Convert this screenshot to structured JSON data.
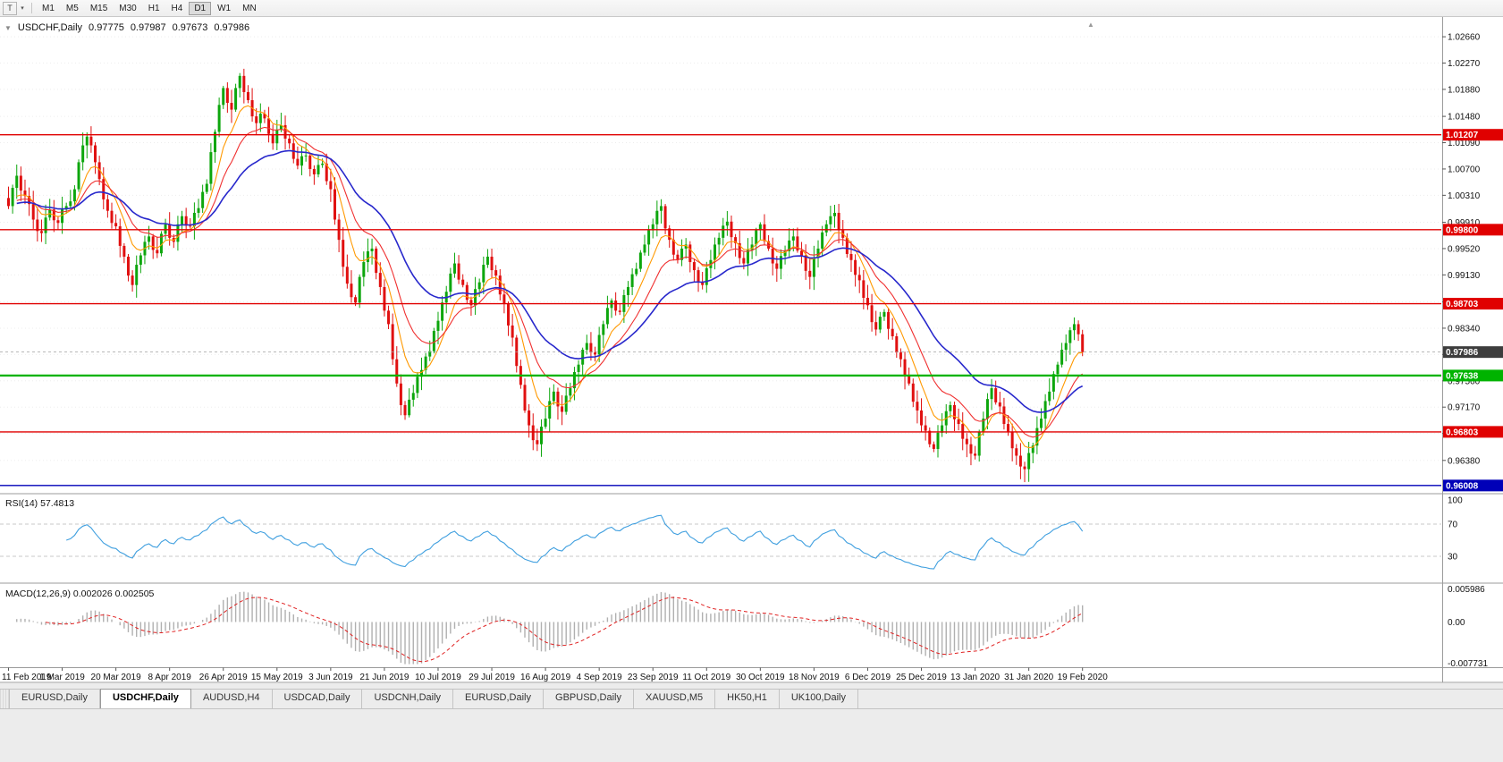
{
  "toolbar": {
    "timeframes": [
      "M1",
      "M5",
      "M15",
      "M30",
      "H1",
      "H4",
      "D1",
      "W1",
      "MN"
    ],
    "active_timeframe": "D1",
    "template_icon": "T",
    "dropdown_icon": "▾"
  },
  "scroll_arrow_icon": "▲",
  "one_click_icon": "▼",
  "chart_data": {
    "type": "candlestick",
    "title_symbol": "USDCHF,Daily",
    "quote": {
      "open": "0.97775",
      "high": "0.97987",
      "low": "0.97673",
      "close": "0.97986"
    },
    "candle_up_color": "#0da60d",
    "candle_down_color": "#e01010",
    "ma_colors": [
      "#ff9900",
      "#f03030",
      "#2828cc"
    ],
    "y_range": [
      0.959,
      1.029
    ],
    "y_ticks": [
      "1.02660",
      "1.02270",
      "1.01880",
      "1.01480",
      "1.01090",
      "1.00700",
      "1.00310",
      "0.99910",
      "0.99520",
      "0.99130",
      "0.98730",
      "0.98340",
      "0.97950",
      "0.97560",
      "0.97170",
      "0.96780",
      "0.96380"
    ],
    "x_labels": [
      {
        "i": 0,
        "label": "11 Feb 2019"
      },
      {
        "i": 13,
        "label": "1 Mar 2019"
      },
      {
        "i": 26,
        "label": "20 Mar 2019"
      },
      {
        "i": 39,
        "label": "8 Apr 2019"
      },
      {
        "i": 52,
        "label": "26 Apr 2019"
      },
      {
        "i": 65,
        "label": "15 May 2019"
      },
      {
        "i": 78,
        "label": "3 Jun 2019"
      },
      {
        "i": 91,
        "label": "21 Jun 2019"
      },
      {
        "i": 104,
        "label": "10 Jul 2019"
      },
      {
        "i": 117,
        "label": "29 Jul 2019"
      },
      {
        "i": 130,
        "label": "16 Aug 2019"
      },
      {
        "i": 143,
        "label": "4 Sep 2019"
      },
      {
        "i": 156,
        "label": "23 Sep 2019"
      },
      {
        "i": 169,
        "label": "11 Oct 2019"
      },
      {
        "i": 182,
        "label": "30 Oct 2019"
      },
      {
        "i": 195,
        "label": "18 Nov 2019"
      },
      {
        "i": 208,
        "label": "6 Dec 2019"
      },
      {
        "i": 221,
        "label": "25 Dec 2019"
      },
      {
        "i": 234,
        "label": "13 Jan 2020"
      },
      {
        "i": 247,
        "label": "31 Jan 2020"
      },
      {
        "i": 260,
        "label": "19 Feb 2020"
      }
    ],
    "hlines": [
      {
        "value": 1.01207,
        "label": "1.01207",
        "color": "#e00000",
        "width": 1.4,
        "role": "resistance"
      },
      {
        "value": 0.998,
        "label": "0.99800",
        "color": "#e00000",
        "width": 1.4,
        "role": "resistance"
      },
      {
        "value": 0.98703,
        "label": "0.98703",
        "color": "#e00000",
        "width": 1.4,
        "role": "resistance"
      },
      {
        "value": 0.97638,
        "label": "0.97638",
        "color": "#00b300",
        "width": 2.2,
        "role": "support"
      },
      {
        "value": 0.96803,
        "label": "0.96803",
        "color": "#e00000",
        "width": 1.4,
        "role": "support"
      },
      {
        "value": 0.96008,
        "label": "0.96008",
        "color": "#0000b8",
        "width": 1.4,
        "role": "support"
      }
    ],
    "current_price": {
      "value": 0.97986,
      "label": "0.97986",
      "badge_color": "#3d3d3d"
    },
    "closes": [
      1.0015,
      1.0042,
      1.006,
      1.0038,
      1.003,
      1.0018,
      0.9995,
      0.9978,
      0.9975,
      0.9998,
      1.001,
      0.9994,
      0.999,
      1.001,
      1.0015,
      1.0022,
      1.004,
      1.008,
      1.0105,
      1.0118,
      1.0105,
      1.008,
      1.0055,
      1.0025,
      1.0008,
      0.999,
      0.9985,
      0.9956,
      0.994,
      0.9912,
      0.9898,
      0.9928,
      0.9942,
      0.9962,
      0.997,
      0.995,
      0.9945,
      0.9974,
      0.9988,
      0.9968,
      0.9962,
      0.9988,
      1.0,
      0.9986,
      0.9985,
      1.0005,
      1.0012,
      1.0036,
      1.0048,
      1.0095,
      1.0125,
      1.0165,
      1.019,
      1.0168,
      1.0158,
      1.019,
      1.0208,
      1.0184,
      1.0172,
      1.0148,
      1.0138,
      1.0152,
      1.0145,
      1.0122,
      1.0108,
      1.0128,
      1.0135,
      1.0115,
      1.0108,
      1.0085,
      1.0075,
      1.0089,
      1.009,
      1.007,
      1.0062,
      1.0076,
      1.0078,
      1.0052,
      1.004,
      0.9995,
      0.9965,
      0.9925,
      0.99,
      0.988,
      0.9872,
      0.991,
      0.9932,
      0.9948,
      0.9952,
      0.9916,
      0.9895,
      0.986,
      0.984,
      0.9788,
      0.9752,
      0.972,
      0.9705,
      0.9728,
      0.9738,
      0.9762,
      0.9772,
      0.9792,
      0.98,
      0.983,
      0.9845,
      0.9872,
      0.9888,
      0.9915,
      0.993,
      0.9906,
      0.9898,
      0.9876,
      0.9868,
      0.9892,
      0.9902,
      0.9928,
      0.994,
      0.992,
      0.9912,
      0.9884,
      0.987,
      0.9838,
      0.982,
      0.9778,
      0.975,
      0.9712,
      0.969,
      0.9668,
      0.9662,
      0.9688,
      0.97,
      0.9726,
      0.974,
      0.9718,
      0.971,
      0.9734,
      0.9745,
      0.9769,
      0.978,
      0.9802,
      0.9812,
      0.9798,
      0.9795,
      0.9824,
      0.984,
      0.9864,
      0.9875,
      0.986,
      0.9858,
      0.9883,
      0.9895,
      0.9914,
      0.9922,
      0.9946,
      0.9958,
      0.9979,
      0.9988,
      1.0008,
      1.0015,
      0.9982,
      0.9965,
      0.9943,
      0.9935,
      0.9952,
      0.9958,
      0.9932,
      0.992,
      0.9902,
      0.9898,
      0.9923,
      0.9935,
      0.9958,
      0.9968,
      0.9986,
      0.9992,
      0.9969,
      0.996,
      0.9938,
      0.993,
      0.995,
      0.9958,
      0.9979,
      0.9988,
      0.9963,
      0.9952,
      0.993,
      0.9922,
      0.9941,
      0.9948,
      0.9964,
      0.997,
      0.9949,
      0.9942,
      0.9919,
      0.991,
      0.9938,
      0.9952,
      0.9976,
      0.9988,
      1.0,
      1.0005,
      0.9979,
      0.9968,
      0.9944,
      0.9935,
      0.9913,
      0.9905,
      0.9879,
      0.9868,
      0.9843,
      0.9832,
      0.9851,
      0.9858,
      0.9833,
      0.9822,
      0.9798,
      0.9788,
      0.9763,
      0.9752,
      0.9725,
      0.9712,
      0.969,
      0.9682,
      0.9662,
      0.9655,
      0.9679,
      0.969,
      0.9711,
      0.972,
      0.9699,
      0.9692,
      0.967,
      0.9662,
      0.9648,
      0.9645,
      0.968,
      0.97,
      0.9729,
      0.9745,
      0.9724,
      0.9718,
      0.9692,
      0.968,
      0.9656,
      0.9645,
      0.9629,
      0.9625,
      0.9649,
      0.966,
      0.9686,
      0.97,
      0.9726,
      0.974,
      0.9766,
      0.978,
      0.9802,
      0.9812,
      0.9831,
      0.984,
      0.9825,
      0.97986
    ],
    "indicators": {
      "rsi": {
        "label": "RSI(14)",
        "value": "57.4813",
        "levels": [
          "100",
          "70",
          "30"
        ],
        "color": "#3f9fdf",
        "level_line_color": "#c8c8c8"
      },
      "macd": {
        "label": "MACD(12,26,9)",
        "values": [
          "0.002026",
          "0.002505"
        ],
        "axis": [
          "0.005986",
          "0.00",
          "-0.007731"
        ],
        "hist_color": "#b0b0b0",
        "signal_color": "#e02020"
      }
    }
  },
  "tabs": {
    "items": [
      {
        "label": "EURUSD,Daily",
        "active": false
      },
      {
        "label": "USDCHF,Daily",
        "active": true
      },
      {
        "label": "AUDUSD,H4",
        "active": false
      },
      {
        "label": "USDCAD,Daily",
        "active": false
      },
      {
        "label": "USDCNH,Daily",
        "active": false
      },
      {
        "label": "EURUSD,Daily",
        "active": false
      },
      {
        "label": "GBPUSD,Daily",
        "active": false
      },
      {
        "label": "XAUUSD,M5",
        "active": false
      },
      {
        "label": "HK50,H1",
        "active": false
      },
      {
        "label": "UK100,Daily",
        "active": false
      }
    ]
  }
}
